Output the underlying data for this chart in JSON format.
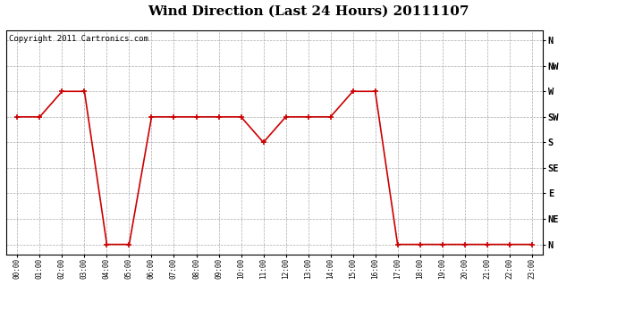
{
  "title": "Wind Direction (Last 24 Hours) 20111107",
  "copyright_text": "Copyright 2011 Cartronics.com",
  "hours": [
    "00:00",
    "01:00",
    "02:00",
    "03:00",
    "04:00",
    "05:00",
    "06:00",
    "07:00",
    "08:00",
    "09:00",
    "10:00",
    "11:00",
    "12:00",
    "13:00",
    "14:00",
    "15:00",
    "16:00",
    "17:00",
    "18:00",
    "19:00",
    "20:00",
    "21:00",
    "22:00",
    "23:00"
  ],
  "wind_values": [
    5,
    5,
    6,
    6,
    0,
    0,
    5,
    5,
    5,
    5,
    5,
    4,
    5,
    5,
    5,
    6,
    6,
    0,
    0,
    0,
    0,
    0,
    0,
    0
  ],
  "ytick_values": [
    0,
    1,
    2,
    3,
    4,
    5,
    6,
    7,
    8
  ],
  "ytick_labels": [
    "N",
    "NE",
    "E",
    "SE",
    "S",
    "SW",
    "W",
    "NW",
    "N"
  ],
  "line_color": "#cc0000",
  "marker": "+",
  "marker_size": 5,
  "line_width": 1.2,
  "bg_color": "#ffffff",
  "grid_color": "#aaaaaa",
  "fig_bg": "#ffffff",
  "title_fontsize": 11,
  "copyright_fontsize": 6.5,
  "ylim": [
    -0.4,
    8.4
  ],
  "xlim": [
    -0.5,
    23.5
  ]
}
